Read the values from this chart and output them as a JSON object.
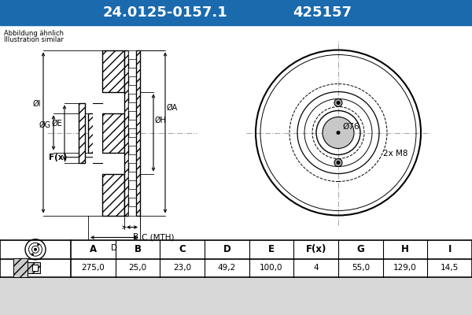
{
  "title_part": "24.0125-0157.1",
  "title_num": "425157",
  "header_bg": "#1a6aad",
  "header_text_color": "#ffffff",
  "bg_color": "#ffffff",
  "outer_bg": "#d8d8d8",
  "note_line1": "Abbildung ähnlich",
  "note_line2": "Illustration similar",
  "col_headers": [
    "A",
    "B",
    "C",
    "D",
    "E",
    "F(x)",
    "G",
    "H",
    "I"
  ],
  "col_values": [
    "275,0",
    "25,0",
    "23,0",
    "49,2",
    "100,0",
    "4",
    "55,0",
    "129,0",
    "14,5"
  ],
  "dim_label_76": "Ø76",
  "dim_label_M8": "2x M8",
  "centerline_color": "#aaaaaa",
  "hatch_color": "#555555"
}
